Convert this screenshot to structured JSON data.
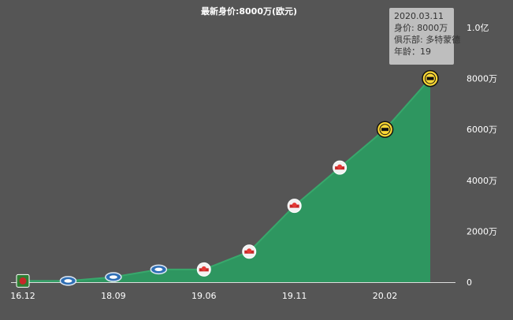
{
  "chart_data": {
    "type": "area",
    "title": "最新身价:8000万(欧元)",
    "xlabel": "",
    "ylabel": "",
    "x_tick_labels": [
      "16.12",
      "18.09",
      "19.06",
      "19.11",
      "20.02"
    ],
    "y_tick_labels": [
      "0",
      "2000万",
      "4000万",
      "6000万",
      "8000万",
      "1.0亿"
    ],
    "ylim": [
      0,
      10000
    ],
    "unit": "万欧元",
    "grid": false,
    "colors": {
      "area": "#2e9660",
      "line": "#38a86c",
      "background": "#555555"
    },
    "points": [
      {
        "y": 50,
        "club": "Red Bull Salzburg"
      },
      {
        "y": 50,
        "club": "Molde"
      },
      {
        "y": 200,
        "club": "Molde"
      },
      {
        "y": 500,
        "club": "Molde"
      },
      {
        "y": 500,
        "club": "Red Bull Salzburg"
      },
      {
        "y": 1200,
        "club": "Red Bull Salzburg"
      },
      {
        "y": 3000,
        "club": "Red Bull Salzburg"
      },
      {
        "y": 4500,
        "club": "Red Bull Salzburg"
      },
      {
        "y": 6000,
        "club": "Borussia Dortmund"
      },
      {
        "y": 8000,
        "club": "Borussia Dortmund"
      }
    ]
  },
  "tooltip": {
    "date": "2020.03.11",
    "value_line": "身价: 8000万",
    "club_line": "俱乐部: 多特蒙德",
    "age_line": "年龄：19"
  }
}
